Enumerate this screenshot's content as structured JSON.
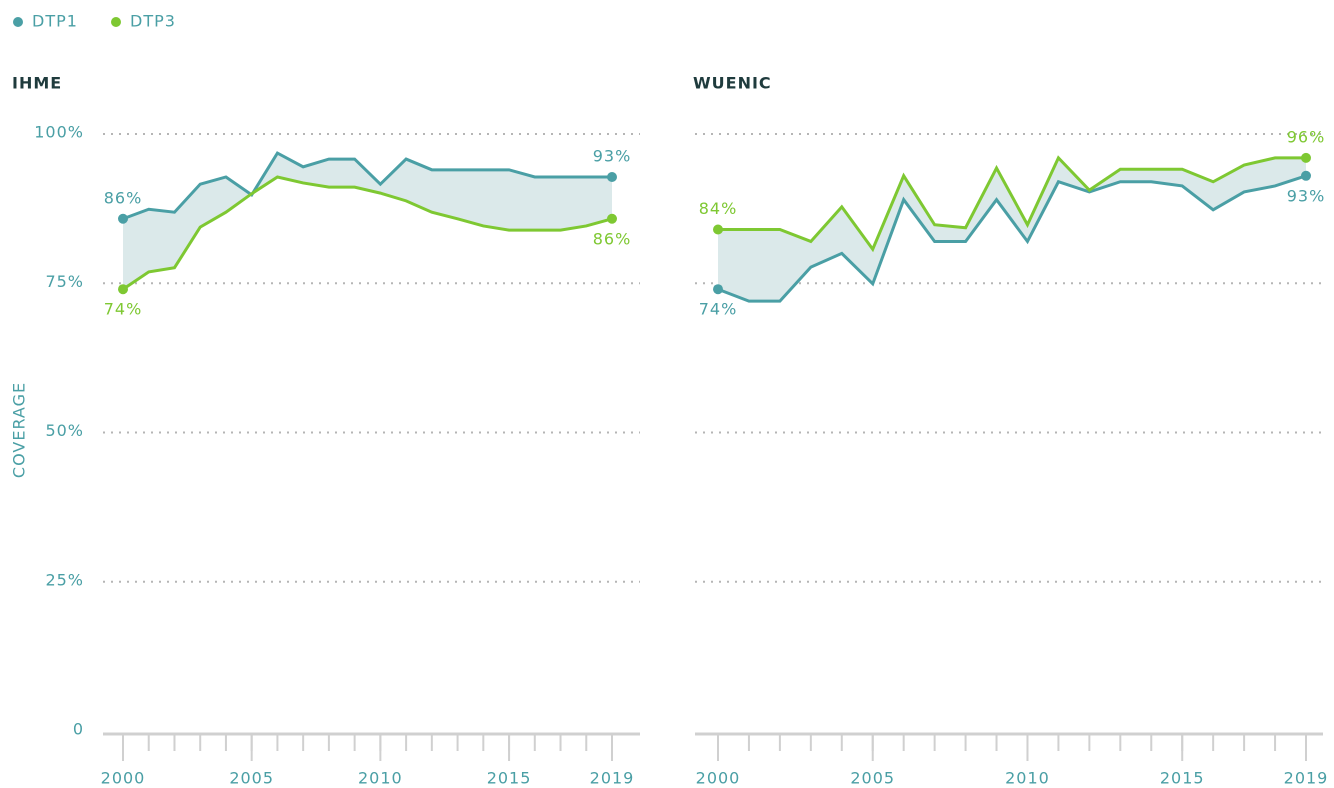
{
  "chart_data": [
    {
      "type": "line",
      "title": "IHME",
      "ylabel": "COVERAGE",
      "x": [
        2000,
        2001,
        2002,
        2003,
        2004,
        2005,
        2006,
        2007,
        2008,
        2009,
        2010,
        2011,
        2012,
        2013,
        2014,
        2015,
        2016,
        2017,
        2018,
        2019
      ],
      "series": [
        {
          "name": "DTP1",
          "color": "#4a9fa5",
          "values": [
            85.8,
            87.4,
            86.9,
            91.6,
            92.8,
            89.8,
            96.8,
            94.5,
            95.8,
            95.8,
            91.6,
            95.8,
            94,
            94,
            94,
            94,
            92.8,
            92.8,
            92.8,
            92.8
          ],
          "value_labels": [
            "86%",
            null,
            null,
            null,
            null,
            null,
            null,
            null,
            null,
            null,
            null,
            null,
            null,
            null,
            null,
            null,
            null,
            null,
            null,
            "93%"
          ]
        },
        {
          "name": "DTP3",
          "color": "#7ec832",
          "values": [
            74,
            76.9,
            77.6,
            84.4,
            86.9,
            90,
            92.8,
            91.8,
            91.1,
            91.1,
            90.1,
            88.8,
            86.9,
            85.8,
            84.6,
            83.9,
            83.9,
            83.9,
            84.6,
            85.8
          ],
          "value_labels": [
            "74%",
            null,
            null,
            null,
            null,
            null,
            null,
            null,
            null,
            null,
            null,
            null,
            null,
            null,
            null,
            null,
            null,
            null,
            null,
            "86%"
          ]
        }
      ],
      "xlim": [
        2000,
        2019
      ],
      "xticks": [
        2000,
        2005,
        2010,
        2015,
        2019
      ],
      "ylim": [
        0,
        100
      ],
      "yticks": [
        0,
        {
          "value": 25,
          "label": "25%"
        },
        {
          "value": 50,
          "label": "50%"
        },
        {
          "value": 75,
          "label": "75%"
        },
        {
          "value": 100,
          "label": "100%"
        }
      ],
      "grid": true
    },
    {
      "type": "line",
      "title": "WUENIC",
      "x": [
        2000,
        2001,
        2002,
        2003,
        2004,
        2005,
        2006,
        2007,
        2008,
        2009,
        2010,
        2011,
        2012,
        2013,
        2014,
        2015,
        2016,
        2017,
        2018,
        2019
      ],
      "series": [
        {
          "name": "DTP1",
          "color": "#4a9fa5",
          "values": [
            74,
            72,
            72,
            77.7,
            80,
            74.9,
            89,
            82,
            82,
            89,
            82,
            92,
            90.3,
            92,
            92,
            91.3,
            87.3,
            90.3,
            91.3,
            93
          ],
          "value_labels": [
            "74%",
            null,
            null,
            null,
            null,
            null,
            null,
            null,
            null,
            null,
            null,
            null,
            null,
            null,
            null,
            null,
            null,
            null,
            null,
            "93%"
          ]
        },
        {
          "name": "DTP3",
          "color": "#7ec832",
          "values": [
            84,
            84,
            84,
            82,
            87.8,
            80.7,
            93,
            84.8,
            84.3,
            94.3,
            84.8,
            96,
            90.6,
            94.1,
            94.1,
            94.1,
            92,
            94.8,
            96,
            96
          ],
          "value_labels": [
            "84%",
            null,
            null,
            null,
            null,
            null,
            null,
            null,
            null,
            null,
            null,
            null,
            null,
            null,
            null,
            null,
            null,
            null,
            null,
            "96%"
          ]
        }
      ],
      "xlim": [
        2000,
        2019
      ],
      "xticks": [
        2000,
        2005,
        2010,
        2015,
        2019
      ],
      "ylim": [
        0,
        100
      ],
      "yticks": [
        0,
        25,
        50,
        75,
        100
      ],
      "grid": true
    }
  ]
}
